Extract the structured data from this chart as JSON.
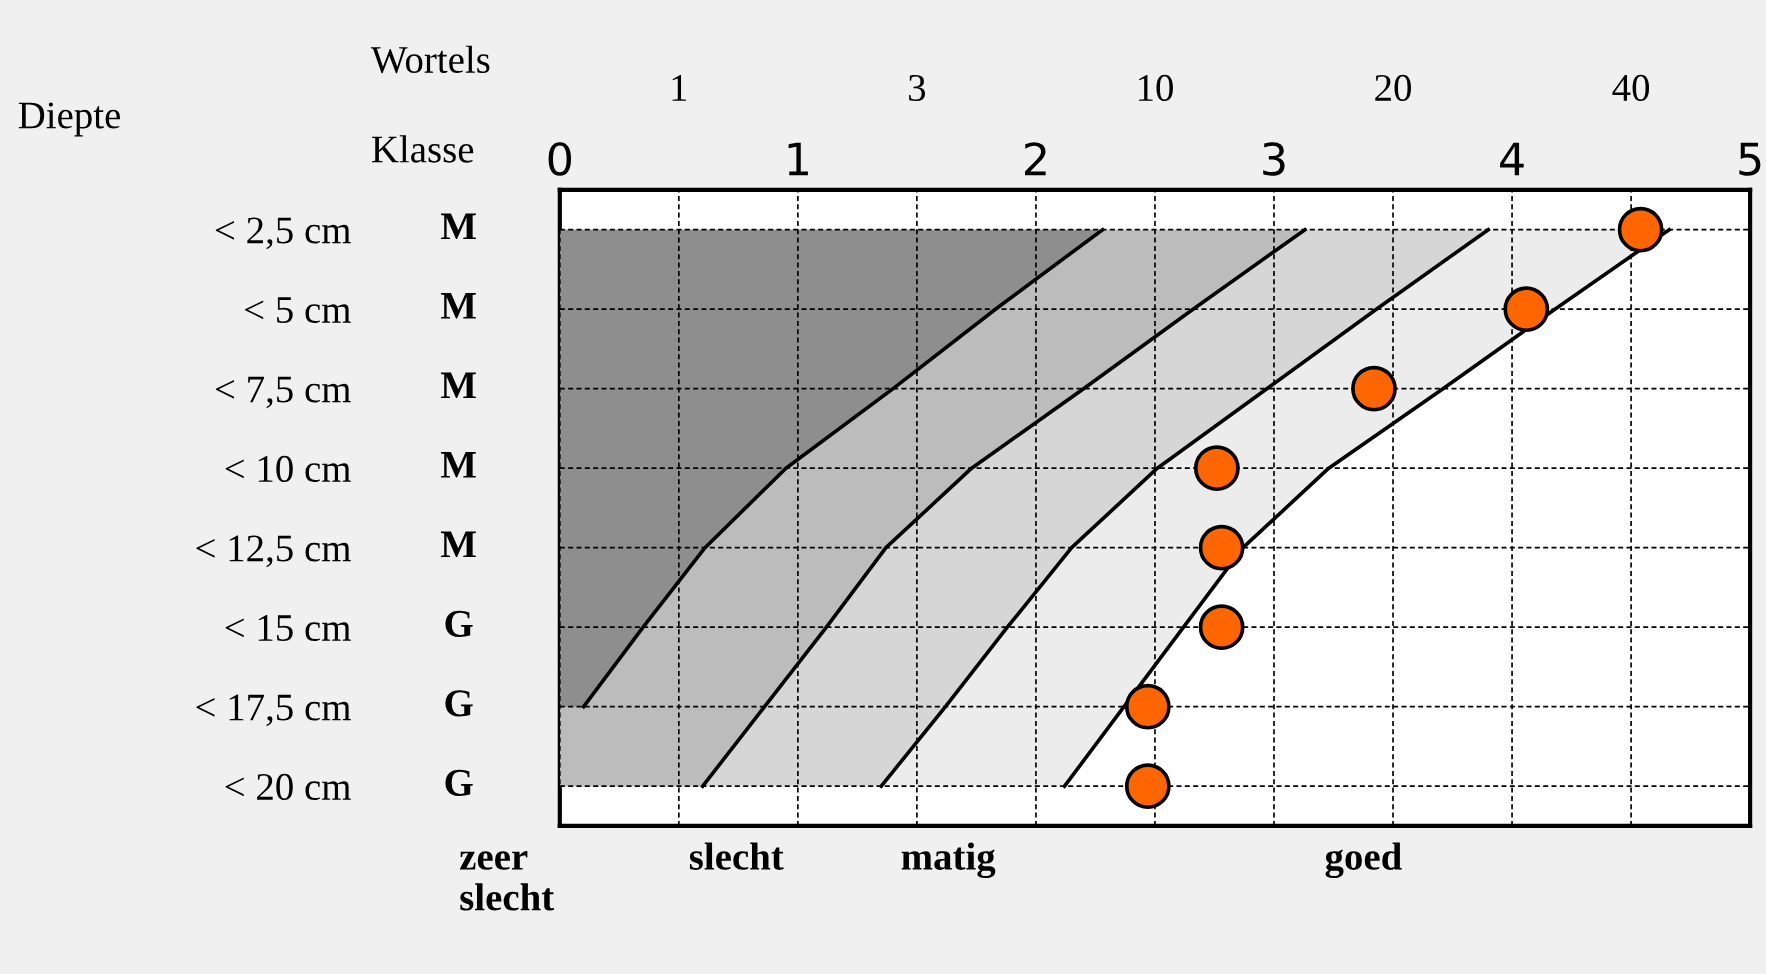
{
  "chart_data": {
    "type": "scatter",
    "orientation": "horizontal",
    "ylabel": "Diepte",
    "xlabel": "Klasse",
    "x2label": "Wortels",
    "categories": [
      "< 2,5 cm",
      "< 5 cm",
      "< 7,5 cm",
      "< 10 cm",
      "< 12,5 cm",
      "< 15 cm",
      "< 17,5 cm",
      "< 20 cm"
    ],
    "y2_categories": [
      "M",
      "M",
      "M",
      "M",
      "M",
      "G",
      "G",
      "G"
    ],
    "xlim": [
      0,
      5
    ],
    "xticks": [
      0,
      1,
      2,
      3,
      4,
      5
    ],
    "series": [
      {
        "type": "area",
        "color": "#ececec",
        "values": [
          4.66,
          4.18,
          3.71,
          3.23,
          2.87,
          2.62,
          2.37,
          2.12
        ]
      },
      {
        "type": "area",
        "color": "#d6d6d6",
        "values": [
          3.9,
          3.43,
          2.97,
          2.51,
          2.15,
          1.88,
          1.62,
          1.35
        ]
      },
      {
        "type": "area",
        "color": "#bcbcbc",
        "values": [
          3.13,
          2.66,
          2.2,
          1.73,
          1.37,
          1.12,
          0.86,
          0.6
        ]
      },
      {
        "type": "area",
        "color": "#8e8e8e",
        "values": [
          2.28,
          1.83,
          1.4,
          0.95,
          0.61,
          0.35,
          0.1,
          null
        ]
      },
      {
        "color": "#ff6600",
        "marker": "circle",
        "values": [
          4.54,
          4.06,
          3.42,
          2.76,
          2.78,
          2.78,
          2.47,
          2.47
        ]
      }
    ],
    "grid": true,
    "annotations": [
      "1",
      "3",
      "10",
      "20",
      "40",
      "zeer\nslecht",
      "slecht",
      "matig",
      "goed"
    ]
  }
}
